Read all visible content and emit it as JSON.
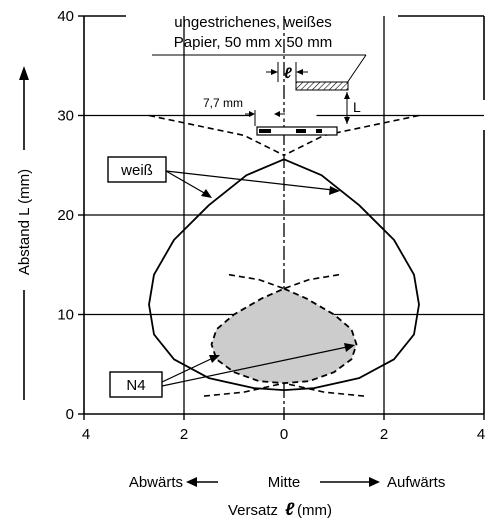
{
  "chart_data": {
    "type": "line",
    "xlabel": "Versatz",
    "xlabel_symbol": "ℓ",
    "xlabel_unit": "(mm)",
    "ylabel": "Abstand L (mm)",
    "xlim": [
      -4,
      4
    ],
    "ylim": [
      0,
      40
    ],
    "x_ticks": [
      {
        "value": -4,
        "label": "4"
      },
      {
        "value": -2,
        "label": "2"
      },
      {
        "value": 0,
        "label": "0"
      },
      {
        "value": 2,
        "label": "2"
      },
      {
        "value": 4,
        "label": "4"
      }
    ],
    "y_ticks": [
      {
        "value": 0,
        "label": "0"
      },
      {
        "value": 10,
        "label": "10"
      },
      {
        "value": 20,
        "label": "20"
      },
      {
        "value": 30,
        "label": "30"
      },
      {
        "value": 40,
        "label": "40"
      }
    ],
    "direction_labels": {
      "left": "Abwärts",
      "center": "Mitte",
      "right": "Aufwärts"
    },
    "annotation_title_line1": "ungestrichenes, weißes",
    "annotation_title_line2": "Papier, 50 mm x 50 mm",
    "symbol_l": "ℓ",
    "symbol_L": "L",
    "dimension_label": "7,7 mm",
    "grid": true,
    "series": [
      {
        "name": "weiß",
        "style": "solid",
        "x": [
          0,
          0.75,
          1.5,
          2.2,
          2.6,
          2.7,
          2.6,
          2.2,
          1.5,
          0.6,
          0,
          -0.6,
          -1.5,
          -2.2,
          -2.6,
          -2.7,
          -2.6,
          -2.2,
          -1.5,
          -0.75,
          0
        ],
        "y": [
          25.6,
          24.0,
          21.0,
          17.5,
          14.0,
          11.0,
          8.0,
          5.5,
          3.6,
          2.6,
          2.4,
          2.6,
          3.6,
          5.5,
          8.0,
          11.0,
          14.0,
          17.5,
          21.0,
          24.0,
          25.6
        ]
      },
      {
        "name": "N4",
        "style": "dashed",
        "fill": "#cccccc",
        "x": [
          0,
          0.45,
          1.0,
          1.35,
          1.45,
          1.35,
          1.0,
          0.5,
          0,
          -0.5,
          -1.0,
          -1.35,
          -1.45,
          -1.35,
          -1.0,
          -0.45,
          0
        ],
        "y": [
          12.6,
          11.6,
          10.0,
          8.5,
          7.0,
          5.5,
          4.2,
          3.3,
          3.1,
          3.3,
          4.2,
          5.5,
          7.0,
          8.5,
          10.0,
          11.6,
          12.6
        ]
      }
    ],
    "dashed_extensions": [
      {
        "x": [
          -2.7,
          -0.8,
          0
        ],
        "y": [
          30,
          28.0,
          26.0
        ]
      },
      {
        "x": [
          2.7,
          0.8,
          0
        ],
        "y": [
          30,
          28.0,
          26.0
        ]
      },
      {
        "x": [
          -1.1,
          -0.5,
          0
        ],
        "y": [
          14.0,
          13.5,
          12.6
        ]
      },
      {
        "x": [
          1.1,
          0.5,
          0
        ],
        "y": [
          14.0,
          13.5,
          12.6
        ]
      },
      {
        "x": [
          -1.6,
          -0.8,
          0
        ],
        "y": [
          1.8,
          2.2,
          3.1
        ]
      },
      {
        "x": [
          1.6,
          0.8,
          0
        ],
        "y": [
          1.8,
          2.2,
          3.1
        ]
      }
    ],
    "colors": {
      "ink": "#000000",
      "fill": "#cccccc",
      "background": "#ffffff"
    }
  }
}
